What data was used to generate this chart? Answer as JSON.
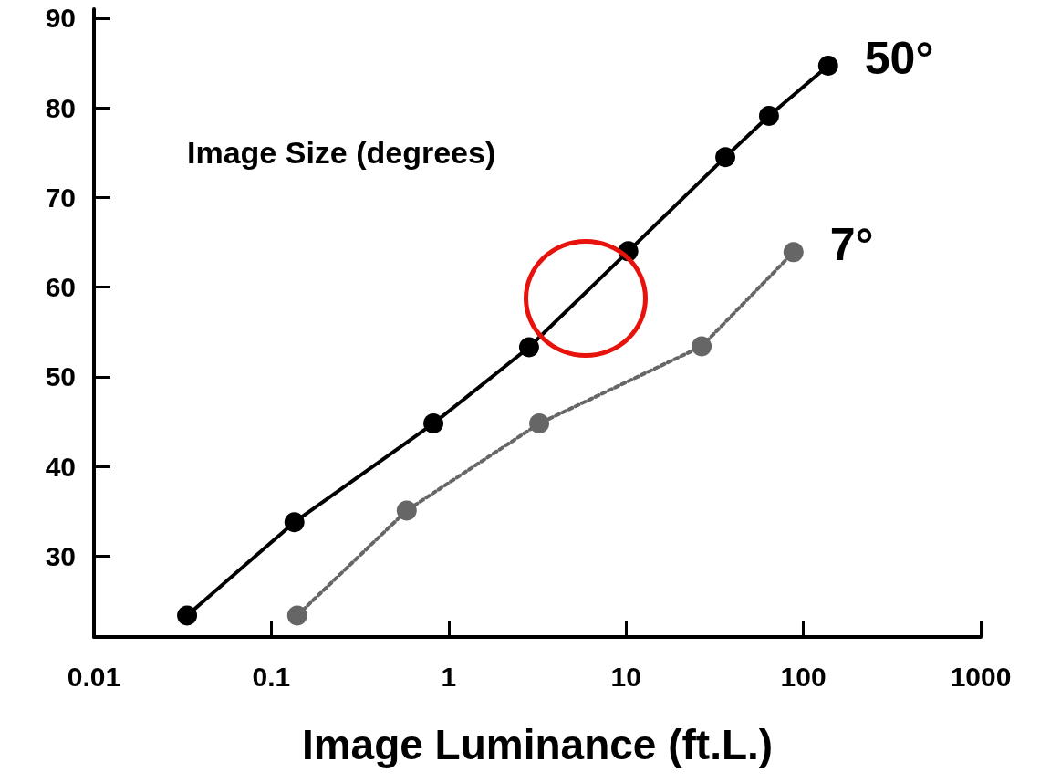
{
  "chart_data": {
    "type": "line",
    "xlabel": "Image Luminance (ft.L.)",
    "annotations": [
      "Image Size (degrees)"
    ],
    "log": "x",
    "xlim": [
      0.01,
      1000
    ],
    "xticks": [
      0.01,
      0.1,
      1,
      10,
      100,
      1000
    ],
    "ylim": [
      21,
      91
    ],
    "yticks": [
      30,
      40,
      50,
      60,
      70,
      80,
      90
    ],
    "grid": false,
    "legend": false,
    "marker": "circle",
    "series": [
      {
        "name": "50°",
        "color": "#000000",
        "line_style": "solid",
        "x": [
          0.0335,
          0.135,
          0.82,
          2.84,
          10.3,
          36.3,
          64,
          138
        ],
        "values": [
          23.4,
          33.8,
          44.8,
          53.3,
          64.0,
          74.5,
          79.1,
          84.7
        ]
      },
      {
        "name": "7°",
        "color": "#666666",
        "line_style": "dotted",
        "x": [
          0.14,
          0.58,
          3.24,
          26.7,
          88
        ],
        "values": [
          23.4,
          35.1,
          44.8,
          53.4,
          63.9
        ]
      }
    ]
  }
}
